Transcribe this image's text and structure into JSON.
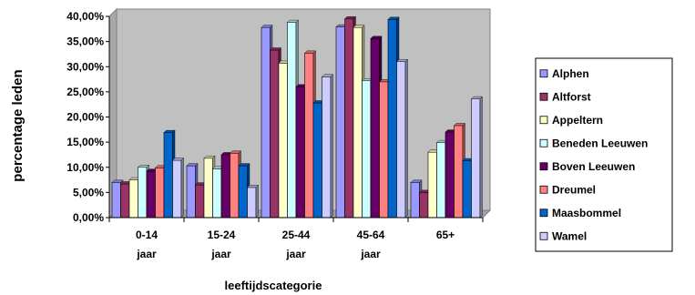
{
  "chart_data": {
    "type": "bar",
    "title": "",
    "xlabel": "leeftijdscategorie",
    "ylabel": "percentage leden",
    "categories": [
      [
        "0-14",
        "jaar"
      ],
      [
        "15-24",
        "jaar"
      ],
      [
        "25-44",
        "jaar"
      ],
      [
        "45-64",
        "jaar"
      ],
      [
        "65+"
      ]
    ],
    "ylim": [
      0,
      40
    ],
    "yticks": [
      "0,00%",
      "5,00%",
      "10,00%",
      "15,00%",
      "20,00%",
      "25,00%",
      "30,00%",
      "35,00%",
      "40,00%"
    ],
    "grid": false,
    "legend_position": "right",
    "plot_background": "#c0c0c0",
    "series": [
      {
        "name": "Alphen",
        "color": "#9999ff",
        "values": [
          7.0,
          10.3,
          37.8,
          37.9,
          7.0
        ]
      },
      {
        "name": "Altforst",
        "color": "#993366",
        "values": [
          6.7,
          6.5,
          33.3,
          39.5,
          5.0
        ]
      },
      {
        "name": "Appeltern",
        "color": "#ffffcc",
        "values": [
          7.5,
          11.8,
          30.7,
          37.8,
          13.0
        ]
      },
      {
        "name": "Beneden Leeuwen",
        "color": "#ccffff",
        "values": [
          10.0,
          9.7,
          38.8,
          27.2,
          14.9
        ]
      },
      {
        "name": "Boven Leeuwen",
        "color": "#660066",
        "values": [
          9.2,
          12.5,
          26.0,
          35.6,
          17.0
        ]
      },
      {
        "name": "Dreumel",
        "color": "#ff8080",
        "values": [
          9.9,
          12.8,
          32.7,
          27.0,
          18.3
        ]
      },
      {
        "name": "Maasbommel",
        "color": "#0066cc",
        "values": [
          16.9,
          10.3,
          22.8,
          39.4,
          11.3
        ]
      },
      {
        "name": "Wamel",
        "color": "#ccccff",
        "values": [
          11.4,
          6.0,
          28.0,
          31.0,
          23.6
        ]
      }
    ]
  }
}
